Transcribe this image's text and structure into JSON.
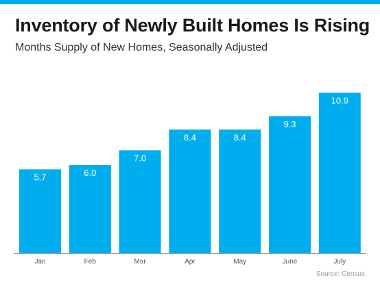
{
  "header": {
    "title": "Inventory of Newly Built Homes Is Rising",
    "subtitle": "Months Supply of New Homes, Seasonally Adjusted"
  },
  "footer": {
    "source": "Source: Census"
  },
  "colors": {
    "accent": "#00aeef",
    "bar": "#00aeef",
    "bar_label": "#ffffff",
    "axis": "#999999",
    "tick_label": "#555555"
  },
  "chart_data": {
    "type": "bar",
    "categories": [
      "Jan",
      "Feb",
      "Mar",
      "Apr",
      "May",
      "June",
      "July"
    ],
    "values": [
      5.7,
      6.0,
      7.0,
      8.4,
      8.4,
      9.3,
      10.9
    ],
    "data_labels": [
      "5.7",
      "6.0",
      "7.0",
      "8.4",
      "8.4",
      "9.3",
      "10.9"
    ],
    "title": "Inventory of Newly Built Homes Is Rising",
    "subtitle": "Months Supply of New Homes, Seasonally Adjusted",
    "xlabel": "",
    "ylabel": "",
    "ylim": [
      0,
      11.3
    ],
    "grid": false,
    "legend": "none"
  }
}
